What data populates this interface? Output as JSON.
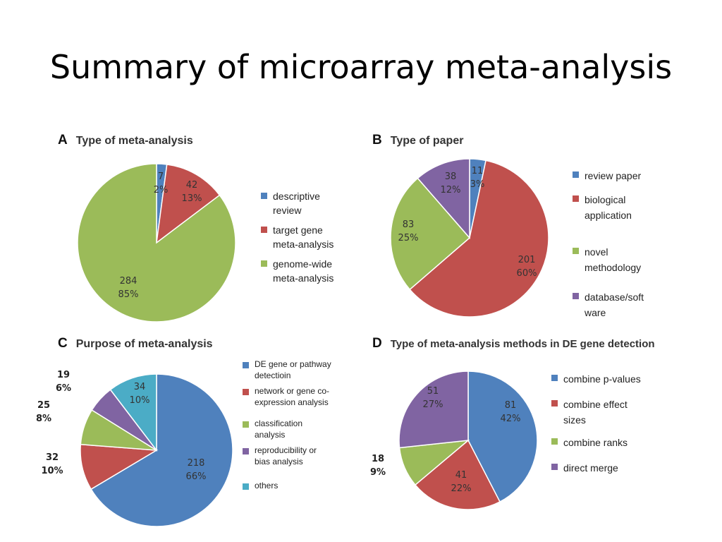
{
  "slide": {
    "title": "Summary of microarray meta-analysis"
  },
  "chart_data": [
    {
      "type": "pie",
      "panel": "A",
      "title": "Type of meta-analysis",
      "slices": [
        {
          "label": "descriptive review",
          "value": 7,
          "percent": "2%",
          "color": "#4f81bd"
        },
        {
          "label": "target gene meta-analysis",
          "value": 42,
          "percent": "13%",
          "color": "#c0504d"
        },
        {
          "label": "genome-wide meta-analysis",
          "value": 284,
          "percent": "85%",
          "color": "#9bbb59"
        }
      ],
      "legend_lines": [
        [
          "descriptive",
          "review"
        ],
        [
          "target gene",
          "meta-analysis"
        ],
        [
          "genome-wide",
          "meta-analysis"
        ]
      ],
      "legend_position": "right"
    },
    {
      "type": "pie",
      "panel": "B",
      "title": "Type of paper",
      "slices": [
        {
          "label": "review paper",
          "value": 11,
          "percent": "3%",
          "color": "#4f81bd"
        },
        {
          "label": "biological application",
          "value": 201,
          "percent": "60%",
          "color": "#c0504d"
        },
        {
          "label": "novel methodology",
          "value": 83,
          "percent": "25%",
          "color": "#9bbb59"
        },
        {
          "label": "database/software",
          "value": 38,
          "percent": "12%",
          "color": "#8064a2"
        }
      ],
      "legend_lines": [
        [
          "review paper"
        ],
        [
          "biological",
          "application"
        ],
        [
          "novel",
          "methodology"
        ],
        [
          "database/soft",
          "ware"
        ]
      ],
      "legend_position": "right"
    },
    {
      "type": "pie",
      "panel": "C",
      "title": "Purpose of meta-analysis",
      "slices": [
        {
          "label": "DE gene or pathway detectioin",
          "value": 218,
          "percent": "66%",
          "color": "#4f81bd"
        },
        {
          "label": "network or gene co-expression analysis",
          "value": 32,
          "percent": "10%",
          "color": "#c0504d"
        },
        {
          "label": "classification analysis",
          "value": 25,
          "percent": "8%",
          "color": "#9bbb59"
        },
        {
          "label": "reproducibility or bias analysis",
          "value": 19,
          "percent": "6%",
          "color": "#8064a2"
        },
        {
          "label": "others",
          "value": 34,
          "percent": "10%",
          "color": "#4bacc6"
        }
      ],
      "legend_lines": [
        [
          "DE gene or pathway",
          "detectioin"
        ],
        [
          "network or gene co-",
          "expression analysis"
        ],
        [
          "classification",
          "analysis"
        ],
        [
          "reproducibility or",
          "bias analysis"
        ],
        [
          "others"
        ]
      ],
      "legend_position": "right"
    },
    {
      "type": "pie",
      "panel": "D",
      "title": "Type of meta-analysis methods in DE gene detection",
      "slices": [
        {
          "label": "combine p-values",
          "value": 81,
          "percent": "42%",
          "color": "#4f81bd"
        },
        {
          "label": "combine effect sizes",
          "value": 41,
          "percent": "22%",
          "color": "#c0504d"
        },
        {
          "label": "combine ranks",
          "value": 18,
          "percent": "9%",
          "color": "#9bbb59"
        },
        {
          "label": "direct merge",
          "value": 51,
          "percent": "27%",
          "color": "#8064a2"
        }
      ],
      "legend_lines": [
        [
          "combine p-values"
        ],
        [
          "combine effect",
          "sizes"
        ],
        [
          "combine ranks"
        ],
        [
          "direct merge"
        ]
      ],
      "legend_position": "right"
    }
  ]
}
